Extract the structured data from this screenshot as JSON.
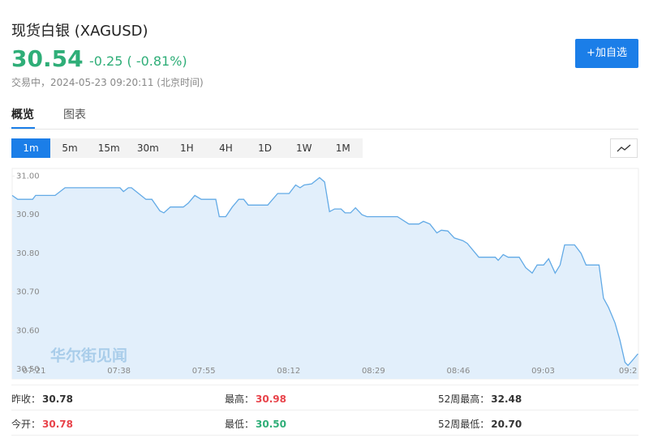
{
  "header": {
    "title": "现货白银 (XAGUSD)",
    "price": "30.54",
    "change": "-0.25 ( -0.81%)",
    "status": "交易中，2024-05-23 09:20:11 (北京时间)",
    "button": "+加自选"
  },
  "tabs": [
    "概览",
    "图表"
  ],
  "intervals": [
    "1m",
    "5m",
    "15m",
    "30m",
    "1H",
    "4H",
    "1D",
    "1W",
    "1M"
  ],
  "chart_data": {
    "type": "area",
    "color": "#62aae6",
    "fill": "#e2effb",
    "watermark": "华尔街见闻",
    "x": [
      436.6,
      437.7,
      440.7,
      441.3,
      445.2,
      447.2,
      458.2,
      458.9,
      459.9,
      460.5,
      463.4,
      464.6,
      466.2,
      467.0,
      468.3,
      470.9,
      471.9,
      473.2,
      474.5,
      477.4,
      478.1,
      479.4,
      480.7,
      482.0,
      483.0,
      483.9,
      487.8,
      489.8,
      492.1,
      493.4,
      494.3,
      495.1,
      496.6,
      498.2,
      499.2,
      500.2,
      501.2,
      502.5,
      503.3,
      504.4,
      505.4,
      506.7,
      507.7,
      513.8,
      516.1,
      518.1,
      519.0,
      520.3,
      521.7,
      522.6,
      523.9,
      525.2,
      526.9,
      527.8,
      530.1,
      533.4,
      534.0,
      535.0,
      536.0,
      538.2,
      539.5,
      540.8,
      541.8,
      543.1,
      544.1,
      545.4,
      546.4,
      547.3,
      549.3,
      550.6,
      551.6,
      554.2,
      555.1,
      556.1,
      557.4,
      558.4,
      559.4,
      560.0,
      560.7,
      562.0
    ],
    "values": [
      30.95,
      30.94,
      30.94,
      30.95,
      30.95,
      30.97,
      30.97,
      30.96,
      30.97,
      30.97,
      30.94,
      30.94,
      30.91,
      30.905,
      30.92,
      30.92,
      30.93,
      30.95,
      30.94,
      30.94,
      30.895,
      30.895,
      30.92,
      30.94,
      30.94,
      30.925,
      30.925,
      30.955,
      30.955,
      30.977,
      30.97,
      30.977,
      30.98,
      30.996,
      30.985,
      30.908,
      30.915,
      30.915,
      30.905,
      30.905,
      30.918,
      30.9,
      30.895,
      30.895,
      30.876,
      30.876,
      30.883,
      30.876,
      30.853,
      30.86,
      30.858,
      30.84,
      30.833,
      30.826,
      30.79,
      30.79,
      30.782,
      30.797,
      30.79,
      30.79,
      30.763,
      30.749,
      30.77,
      30.77,
      30.786,
      30.749,
      30.77,
      30.822,
      30.822,
      30.8,
      30.77,
      30.77,
      30.684,
      30.66,
      30.62,
      30.575,
      30.518,
      30.51,
      30.52,
      30.54
    ],
    "xlim": [
      436.6,
      562.1
    ],
    "xticks": [
      {
        "value": 441,
        "label": "07:21"
      },
      {
        "value": 458,
        "label": "07:38"
      },
      {
        "value": 475,
        "label": "07:55"
      },
      {
        "value": 492,
        "label": "08:12"
      },
      {
        "value": 509,
        "label": "08:29"
      },
      {
        "value": 526,
        "label": "08:46"
      },
      {
        "value": 543,
        "label": "09:03"
      },
      {
        "value": 560,
        "label": "09:2"
      }
    ],
    "ylim": [
      30.475,
      31.02
    ],
    "yticks": [
      {
        "value": 30.5,
        "label": "30.50"
      },
      {
        "value": 30.6,
        "label": "30.60"
      },
      {
        "value": 30.7,
        "label": "30.70"
      },
      {
        "value": 30.8,
        "label": "30.80"
      },
      {
        "value": 30.9,
        "label": "30.90"
      },
      {
        "value": 31.0,
        "label": "31.00"
      }
    ]
  },
  "stats": [
    {
      "label": "昨收：",
      "value": "30.78"
    },
    {
      "label": "最高：",
      "value": "30.98"
    },
    {
      "label": "52周最高：",
      "value": "32.48"
    },
    {
      "label": "今开：",
      "value": "30.78"
    },
    {
      "label": "最低：",
      "value": "30.50"
    },
    {
      "label": "52周最低：",
      "value": "20.70"
    }
  ]
}
